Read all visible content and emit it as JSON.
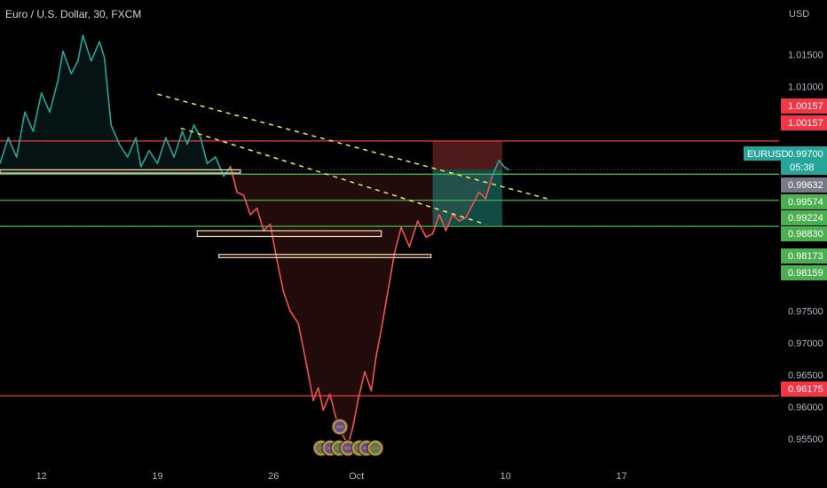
{
  "header": {
    "title": "Euro / U.S. Dollar, 30, FXCM"
  },
  "colors": {
    "background": "#000000",
    "up": "#26a69a",
    "down": "#ef5350",
    "hline_red": "#f23645",
    "hline_green": "#4caf50",
    "trend": "#f5e663",
    "text": "#b2b5be"
  },
  "chart_data": {
    "type": "line",
    "currency": "USD",
    "yticks": [
      "1.01500",
      "1.01000",
      "1.00500",
      "1.00000",
      "0.97500",
      "0.97000",
      "0.96500",
      "0.96000",
      "0.95500"
    ],
    "ytick_values": [
      1.015,
      1.01,
      1.005,
      1.0,
      0.975,
      0.97,
      0.965,
      0.96,
      0.955
    ],
    "xticks": [
      "12",
      "19",
      "26",
      "Oct",
      "10",
      "17"
    ],
    "xtick_days": [
      12,
      19,
      26,
      31,
      40,
      47
    ],
    "x_days_range": [
      9.5,
      56.5
    ],
    "ylim": [
      0.9515,
      1.0235
    ],
    "price_labels": [
      {
        "text": "1.00157",
        "value": 1.00157,
        "kind": "red"
      },
      {
        "text": "1.00157",
        "value": 1.00157,
        "kind": "red"
      },
      {
        "text": "0.99700",
        "value": 0.997,
        "kind": "teal",
        "symbol": "EURUSD",
        "countdown": "05:38"
      },
      {
        "text": "0.99632",
        "value": 0.99632,
        "kind": "gray"
      },
      {
        "text": "0.99574",
        "value": 0.99574,
        "kind": "green"
      },
      {
        "text": "0.99224",
        "value": 0.99224,
        "kind": "green"
      },
      {
        "text": "0.98830",
        "value": 0.9883,
        "kind": "green"
      },
      {
        "text": "0.98173",
        "value": 0.98173,
        "kind": "green"
      },
      {
        "text": "0.98159",
        "value": 0.98159,
        "kind": "green"
      },
      {
        "text": "0.96175",
        "value": 0.96175,
        "kind": "red"
      }
    ],
    "horizontal_lines": [
      {
        "value": 1.0015,
        "color": "red"
      },
      {
        "value": 0.99632,
        "color": "green"
      },
      {
        "value": 0.99224,
        "color": "green"
      },
      {
        "value": 0.98817,
        "color": "green"
      },
      {
        "value": 0.96175,
        "color": "red"
      }
    ],
    "zones": [
      {
        "x0": 9.5,
        "x1": 24.0,
        "v0": 0.997,
        "v1": 0.9965
      },
      {
        "x0": 21.4,
        "x1": 32.5,
        "v0": 0.9875,
        "v1": 0.9866
      },
      {
        "x0": 22.7,
        "x1": 35.5,
        "v0": 0.9838,
        "v1": 0.9833
      }
    ],
    "trendlines": [
      {
        "x0": 19.0,
        "v0": 1.0088,
        "x1": 42.5,
        "v1": 0.9925
      },
      {
        "x0": 20.4,
        "v0": 1.0035,
        "x1": 38.8,
        "v1": 0.9885
      }
    ],
    "position": {
      "x0": 35.6,
      "x1": 39.8,
      "entry": 0.997,
      "stop": 1.0015,
      "target": 0.9883
    },
    "price_path": [
      [
        9.5,
        0.998
      ],
      [
        10.0,
        1.002
      ],
      [
        10.5,
        0.999
      ],
      [
        11.0,
        1.006
      ],
      [
        11.5,
        1.003
      ],
      [
        12.0,
        1.009
      ],
      [
        12.5,
        1.006
      ],
      [
        13.0,
        1.011
      ],
      [
        13.3,
        1.0155
      ],
      [
        13.8,
        1.012
      ],
      [
        14.2,
        1.014
      ],
      [
        14.5,
        1.018
      ],
      [
        15.0,
        1.014
      ],
      [
        15.5,
        1.017
      ],
      [
        15.8,
        1.0145
      ],
      [
        16.2,
        1.004
      ],
      [
        16.7,
        1.001
      ],
      [
        17.2,
        0.999
      ],
      [
        17.7,
        1.002
      ],
      [
        18.0,
        0.9975
      ],
      [
        18.5,
        1.0
      ],
      [
        19.0,
        0.998
      ],
      [
        19.5,
        1.002
      ],
      [
        20.0,
        0.999
      ],
      [
        20.5,
        1.003
      ],
      [
        20.8,
        1.001
      ],
      [
        21.2,
        1.004
      ],
      [
        21.6,
        1.002
      ],
      [
        22.0,
        0.998
      ],
      [
        22.5,
        0.999
      ],
      [
        23.0,
        0.996
      ],
      [
        23.4,
        0.9975
      ],
      [
        23.8,
        0.9935
      ],
      [
        24.2,
        0.993
      ],
      [
        24.6,
        0.99
      ],
      [
        25.0,
        0.991
      ],
      [
        25.4,
        0.9875
      ],
      [
        25.8,
        0.9885
      ],
      [
        26.2,
        0.983
      ],
      [
        26.6,
        0.978
      ],
      [
        27.0,
        0.975
      ],
      [
        27.5,
        0.973
      ],
      [
        28.0,
        0.9665
      ],
      [
        28.4,
        0.961
      ],
      [
        28.7,
        0.963
      ],
      [
        29.0,
        0.9595
      ],
      [
        29.4,
        0.962
      ],
      [
        29.8,
        0.958
      ],
      [
        30.2,
        0.9555
      ],
      [
        30.5,
        0.954
      ],
      [
        30.8,
        0.957
      ],
      [
        31.1,
        0.961
      ],
      [
        31.5,
        0.9655
      ],
      [
        31.9,
        0.9625
      ],
      [
        32.2,
        0.968
      ],
      [
        32.5,
        0.972
      ],
      [
        32.9,
        0.978
      ],
      [
        33.3,
        0.984
      ],
      [
        33.7,
        0.988
      ],
      [
        34.2,
        0.985
      ],
      [
        34.7,
        0.989
      ],
      [
        35.2,
        0.9865
      ],
      [
        35.6,
        0.987
      ],
      [
        36.0,
        0.99
      ],
      [
        36.4,
        0.9875
      ],
      [
        36.8,
        0.99
      ],
      [
        37.2,
        0.989
      ],
      [
        37.6,
        0.9895
      ],
      [
        38.0,
        0.9915
      ],
      [
        38.4,
        0.9935
      ],
      [
        38.8,
        0.9925
      ],
      [
        39.2,
        0.996
      ],
      [
        39.6,
        0.9985
      ],
      [
        39.9,
        0.9975
      ],
      [
        40.2,
        0.997
      ]
    ]
  }
}
